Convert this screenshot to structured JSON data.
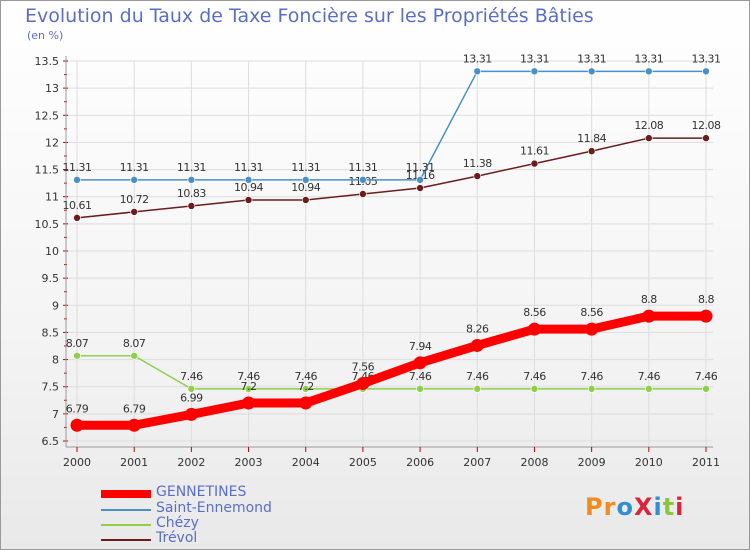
{
  "chart_data": {
    "type": "line",
    "title": "Evolution du Taux de Taxe Foncière sur les Propriétés Bâties",
    "subtitle": "(en %)",
    "xlabel": "",
    "ylabel": "",
    "categories": [
      "2000",
      "2001",
      "2002",
      "2003",
      "2004",
      "2005",
      "2006",
      "2007",
      "2008",
      "2009",
      "2010",
      "2011"
    ],
    "ylim": [
      6.5,
      13.5
    ],
    "yticks": [
      "6.5",
      "7",
      "7.5",
      "8",
      "8.5",
      "9",
      "9.5",
      "10",
      "10.5",
      "11",
      "11.5",
      "12",
      "12.5",
      "13",
      "13.5"
    ],
    "grid": true,
    "legend_position": "bottom",
    "series": [
      {
        "name": "GENNETINES",
        "color": "#ff0000",
        "labels": [
          "6.79",
          "6.79",
          "6.99",
          "7.2",
          "7.2",
          "7.56",
          "7.94",
          "8.26",
          "8.56",
          "8.56",
          "8.8",
          "8.8"
        ],
        "values": [
          6.79,
          6.79,
          6.99,
          7.2,
          7.2,
          7.56,
          7.94,
          8.26,
          8.56,
          8.56,
          8.8,
          8.8
        ]
      },
      {
        "name": "Saint-Ennemond",
        "color": "#4a90c8",
        "labels": [
          "11.31",
          "11.31",
          "11.31",
          "11.31",
          "11.31",
          "11.31",
          "11.31",
          "13.31",
          "13.31",
          "13.31",
          "13.31",
          "13.31"
        ],
        "values": [
          11.31,
          11.31,
          11.31,
          11.31,
          11.31,
          11.31,
          11.31,
          13.31,
          13.31,
          13.31,
          13.31,
          13.31
        ]
      },
      {
        "name": "Chézy",
        "color": "#8ed04c",
        "labels": [
          "8.07",
          "8.07",
          "7.46",
          "7.46",
          "7.46",
          "7.46",
          "7.46",
          "7.46",
          "7.46",
          "7.46",
          "7.46",
          "7.46"
        ],
        "values": [
          8.07,
          8.07,
          7.46,
          7.46,
          7.46,
          7.46,
          7.46,
          7.46,
          7.46,
          7.46,
          7.46,
          7.46
        ]
      },
      {
        "name": "Trévol",
        "color": "#6b1c1c",
        "labels": [
          "10.61",
          "10.72",
          "10.83",
          "10.94",
          "10.94",
          "11.05",
          "11.16",
          "11.38",
          "11.61",
          "11.84",
          "12.08",
          "12.08"
        ],
        "values": [
          10.61,
          10.72,
          10.83,
          10.94,
          10.94,
          11.05,
          11.16,
          11.38,
          11.61,
          11.84,
          12.08,
          12.08
        ]
      }
    ]
  },
  "logo": {
    "text": "ProXiti",
    "colors": [
      "#f28b1e",
      "#2e8fd1",
      "#8cc63f",
      "#d7263d"
    ]
  }
}
